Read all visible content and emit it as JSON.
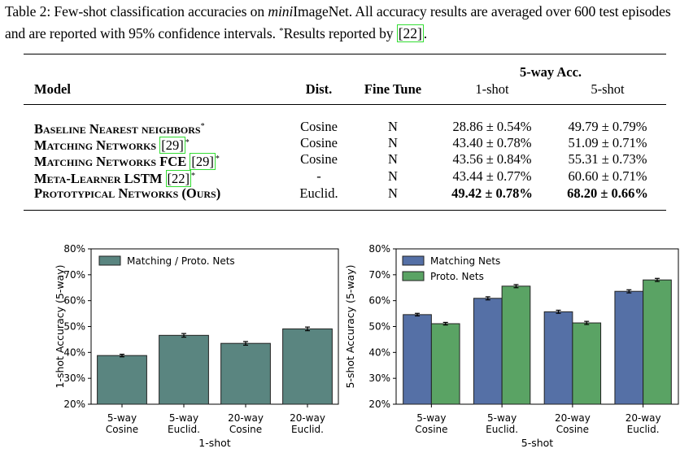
{
  "caption": {
    "prefix": "Table 2: Few-shot classification accuracies on ",
    "italic": "mini",
    "middle": "ImageNet. All accuracy results are averaged over 600 test episodes and are reported with 95% confidence intervals. ",
    "star": "*",
    "suffix_pre": "Results reported by ",
    "ref": "[22]",
    "suffix_post": "."
  },
  "table": {
    "group_header": "5-way Acc.",
    "headers": {
      "model": "Model",
      "dist": "Dist.",
      "finetune": "Fine Tune",
      "shot1": "1-shot",
      "shot5": "5-shot"
    },
    "rows": [
      {
        "model": "Baseline Nearest neighbors",
        "ref": "",
        "star": "*",
        "dist": "Cosine",
        "finetune": "N",
        "shot1": "28.86 ± 0.54%",
        "shot5": "49.79 ± 0.79%",
        "bold": false
      },
      {
        "model": "Matching Networks",
        "ref": "[29]",
        "star": "*",
        "dist": "Cosine",
        "finetune": "N",
        "shot1": "43.40 ± 0.78%",
        "shot5": "51.09 ± 0.71%",
        "bold": false
      },
      {
        "model": "Matching Networks FCE",
        "ref": "[29]",
        "star": "*",
        "dist": "Cosine",
        "finetune": "N",
        "shot1": "43.56 ± 0.84%",
        "shot5": "55.31 ± 0.73%",
        "bold": false
      },
      {
        "model": "Meta-Learner LSTM",
        "ref": "[22]",
        "star": "*",
        "dist": "-",
        "finetune": "N",
        "shot1": "43.44 ± 0.77%",
        "shot5": "60.60 ± 0.71%",
        "bold": false
      },
      {
        "model": "Prototypical Networks (Ours)",
        "ref": "",
        "star": "",
        "dist": "Euclid.",
        "finetune": "N",
        "shot1": "49.42 ± 0.78%",
        "shot5": "68.20 ± 0.66%",
        "bold": true
      }
    ]
  },
  "chart_data": [
    {
      "type": "bar",
      "categories": [
        "5-way Cosine",
        "5-way Euclid.",
        "20-way Cosine",
        "20-way Euclid."
      ],
      "category_lines": [
        [
          "5-way",
          "Cosine"
        ],
        [
          "5-way",
          "Euclid."
        ],
        [
          "20-way",
          "Cosine"
        ],
        [
          "20-way",
          "Euclid."
        ]
      ],
      "series": [
        {
          "name": "Matching / Proto. Nets",
          "color": "#5a8580",
          "values": [
            38.8,
            46.6,
            43.5,
            49.1
          ],
          "errors": [
            0.5,
            0.7,
            0.7,
            0.7
          ]
        }
      ],
      "xlabel": "1-shot",
      "ylabel": "1-shot Accuracy (5-way)",
      "ylim": [
        20,
        80
      ],
      "yticks": [
        "20%",
        "30%",
        "40%",
        "50%",
        "60%",
        "70%",
        "80%"
      ],
      "legend": "top-left",
      "grid": false
    },
    {
      "type": "bar",
      "categories": [
        "5-way Cosine",
        "5-way Euclid.",
        "20-way Cosine",
        "20-way Euclid."
      ],
      "category_lines": [
        [
          "5-way",
          "Cosine"
        ],
        [
          "5-way",
          "Euclid."
        ],
        [
          "20-way",
          "Cosine"
        ],
        [
          "20-way",
          "Euclid."
        ]
      ],
      "series": [
        {
          "name": "Matching Nets",
          "color": "#5570a6",
          "values": [
            54.6,
            60.9,
            55.7,
            63.6
          ],
          "errors": [
            0.5,
            0.6,
            0.6,
            0.6
          ]
        },
        {
          "name": "Proto. Nets",
          "color": "#5aa364",
          "values": [
            51.1,
            65.6,
            51.4,
            68.0
          ],
          "errors": [
            0.5,
            0.6,
            0.6,
            0.6
          ]
        }
      ],
      "xlabel": "5-shot",
      "ylabel": "5-shot Accuracy (5-way)",
      "ylim": [
        20,
        80
      ],
      "yticks": [
        "20%",
        "30%",
        "40%",
        "50%",
        "60%",
        "70%",
        "80%"
      ],
      "legend": "top-left",
      "grid": false
    }
  ]
}
